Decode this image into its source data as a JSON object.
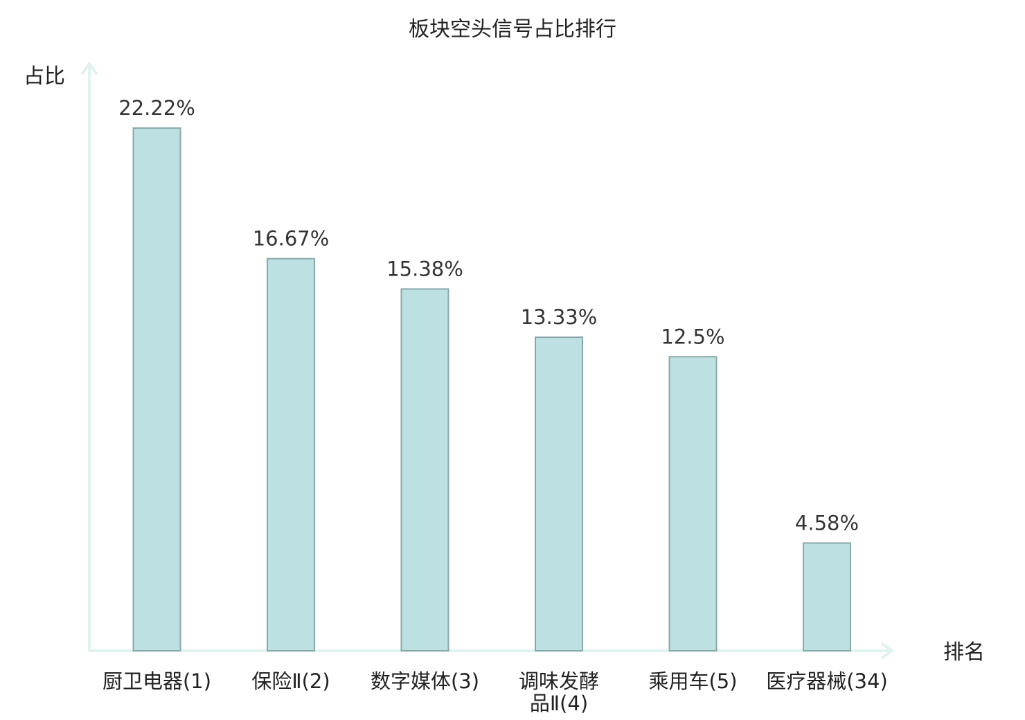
{
  "chart_data": {
    "type": "bar",
    "title": "板块空头信号占比排行",
    "xlabel": "排名",
    "ylabel": "占比",
    "categories": [
      "厨卫电器(1)",
      "保险Ⅱ(2)",
      "数字媒体(3)",
      "调味发酵品Ⅱ(4)",
      "乘用车(5)",
      "医疗器械(34)"
    ],
    "category_lines": [
      [
        "厨卫电器(1)"
      ],
      [
        "保险Ⅱ(2)"
      ],
      [
        "数字媒体(3)"
      ],
      [
        "调味发酵",
        "品Ⅱ(4)"
      ],
      [
        "乘用车(5)"
      ],
      [
        "医疗器械(34)"
      ]
    ],
    "values": [
      22.22,
      16.67,
      15.38,
      13.33,
      12.5,
      4.58
    ],
    "value_labels": [
      "22.22%",
      "16.67%",
      "15.38%",
      "13.33%",
      "12.5%",
      "4.58%"
    ],
    "highlight_index": 5,
    "ylim": [
      0,
      22.22
    ],
    "grid": false,
    "legend": "none",
    "colors": {
      "bar_fill": "#bde0e3",
      "bar_stroke": "#8aa8aa",
      "axis": "#dff2ef",
      "highlight_text": "#e31a1a",
      "label_text": "#222222",
      "value_text": "#333333"
    }
  }
}
